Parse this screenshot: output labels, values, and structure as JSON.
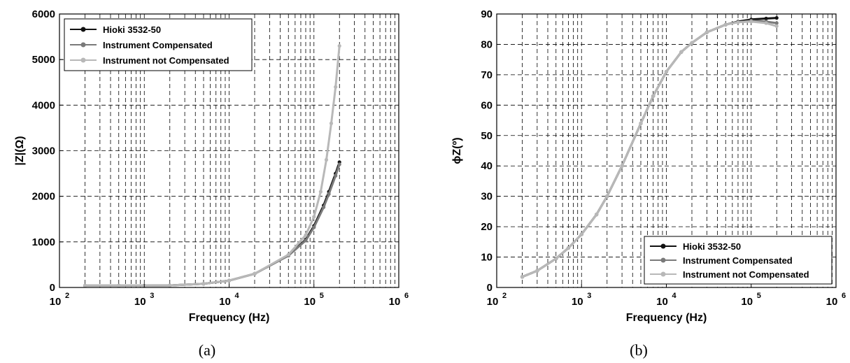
{
  "figure": {
    "captions": [
      "(a)",
      "(b)"
    ]
  },
  "chart_data": [
    {
      "type": "line",
      "xlabel": "Frequency (Hz)",
      "ylabel": "|Z|(Ω)",
      "xscale": "log",
      "xlim": [
        100,
        1000000
      ],
      "ylim": [
        0,
        6000
      ],
      "x_ticks": [
        {
          "base": "10",
          "exp": "2"
        },
        {
          "base": "10",
          "exp": "3"
        },
        {
          "base": "10",
          "exp": "4"
        },
        {
          "base": "10",
          "exp": "5"
        },
        {
          "base": "10",
          "exp": "6"
        }
      ],
      "y_ticks": [
        "0",
        "1000",
        "2000",
        "3000",
        "4000",
        "5000",
        "6000"
      ],
      "grid": true,
      "legend_position": "top-left",
      "colors": {
        "hioki": "#111111",
        "compensated": "#7a7a7a",
        "not_compensated": "#b8b8b8"
      },
      "series": [
        {
          "name": "Hioki 3532-50",
          "color_key": "hioki",
          "x": [
            200,
            500,
            1000,
            2000,
            5000,
            10000,
            20000,
            50000,
            80000,
            100000,
            130000,
            150000,
            180000,
            200000
          ],
          "y": [
            40,
            40,
            40,
            45,
            80,
            150,
            300,
            700,
            1050,
            1350,
            1800,
            2100,
            2500,
            2750
          ]
        },
        {
          "name": "Instrument Compensated",
          "color_key": "compensated",
          "x": [
            200,
            500,
            1000,
            2000,
            5000,
            10000,
            20000,
            50000,
            80000,
            100000,
            130000,
            150000,
            180000,
            200000
          ],
          "y": [
            40,
            40,
            40,
            45,
            80,
            150,
            300,
            700,
            1030,
            1320,
            1760,
            2050,
            2450,
            2700
          ]
        },
        {
          "name": "Instrument not Compensated",
          "color_key": "not_compensated",
          "x": [
            200,
            500,
            1000,
            2000,
            5000,
            10000,
            20000,
            50000,
            80000,
            100000,
            120000,
            140000,
            160000,
            180000,
            200000
          ],
          "y": [
            40,
            40,
            40,
            45,
            80,
            150,
            300,
            720,
            1150,
            1550,
            2100,
            2800,
            3600,
            4400,
            5300
          ]
        }
      ]
    },
    {
      "type": "line",
      "xlabel": "Frequency (Hz)",
      "ylabel": "ϕZ(º)",
      "xscale": "log",
      "xlim": [
        100,
        1000000
      ],
      "ylim": [
        0,
        90
      ],
      "x_ticks": [
        {
          "base": "10",
          "exp": "2"
        },
        {
          "base": "10",
          "exp": "3"
        },
        {
          "base": "10",
          "exp": "4"
        },
        {
          "base": "10",
          "exp": "5"
        },
        {
          "base": "10",
          "exp": "6"
        }
      ],
      "y_ticks": [
        "0",
        "10",
        "20",
        "30",
        "40",
        "50",
        "60",
        "70",
        "80",
        "90"
      ],
      "grid": true,
      "legend_position": "bottom-right",
      "colors": {
        "hioki": "#111111",
        "compensated": "#7a7a7a",
        "not_compensated": "#b8b8b8"
      },
      "series": [
        {
          "name": "Hioki 3532-50",
          "color_key": "hioki",
          "x": [
            200,
            300,
            500,
            700,
            1000,
            1500,
            2000,
            3000,
            5000,
            7000,
            10000,
            15000,
            20000,
            30000,
            50000,
            70000,
            100000,
            150000,
            200000
          ],
          "y": [
            3.5,
            5.5,
            9.5,
            13,
            17.5,
            24,
            30,
            40,
            54,
            63,
            71,
            77.5,
            80.5,
            84,
            86.5,
            87.5,
            88.2,
            88.5,
            88.7
          ]
        },
        {
          "name": "Instrument Compensated",
          "color_key": "compensated",
          "x": [
            200,
            300,
            500,
            700,
            1000,
            1500,
            2000,
            3000,
            5000,
            7000,
            10000,
            15000,
            20000,
            30000,
            50000,
            70000,
            100000,
            150000,
            200000
          ],
          "y": [
            3.5,
            5.5,
            9.5,
            13,
            17.5,
            24,
            30,
            40,
            54,
            63,
            71,
            77.5,
            80.5,
            84,
            86.5,
            87.3,
            87.8,
            87.5,
            87
          ]
        },
        {
          "name": "Instrument not Compensated",
          "color_key": "not_compensated",
          "x": [
            200,
            300,
            500,
            700,
            1000,
            1500,
            2000,
            3000,
            5000,
            7000,
            10000,
            15000,
            20000,
            30000,
            50000,
            70000,
            100000,
            150000,
            200000
          ],
          "y": [
            3.5,
            5.5,
            9.5,
            13,
            17.5,
            24,
            30,
            40,
            54,
            63,
            71,
            77.5,
            80.5,
            84,
            86.5,
            87.3,
            87.5,
            87,
            86
          ]
        }
      ]
    }
  ]
}
